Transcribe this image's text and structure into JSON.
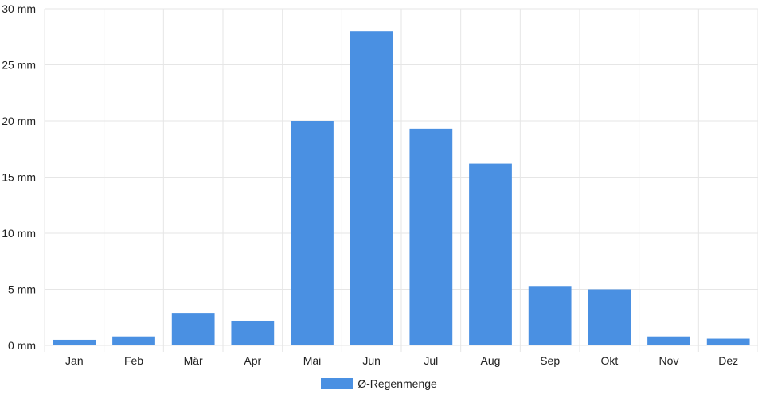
{
  "chart_data": {
    "type": "bar",
    "categories": [
      "Jan",
      "Feb",
      "Mär",
      "Apr",
      "Mai",
      "Jun",
      "Jul",
      "Aug",
      "Sep",
      "Okt",
      "Nov",
      "Dez"
    ],
    "series": [
      {
        "name": "Ø-Regenmenge",
        "values": [
          0.5,
          0.8,
          2.9,
          2.2,
          20.0,
          28.0,
          19.3,
          16.2,
          5.3,
          5.0,
          0.8,
          0.6
        ]
      }
    ],
    "yticks": [
      "0 mm",
      "5 mm",
      "10 mm",
      "15 mm",
      "20 mm",
      "25 mm",
      "30 mm"
    ],
    "ylim": [
      0,
      30
    ],
    "grid": true,
    "legend_position": "bottom",
    "colors": {
      "bar": "#4a90e2",
      "grid": "#e6e6e6"
    }
  }
}
